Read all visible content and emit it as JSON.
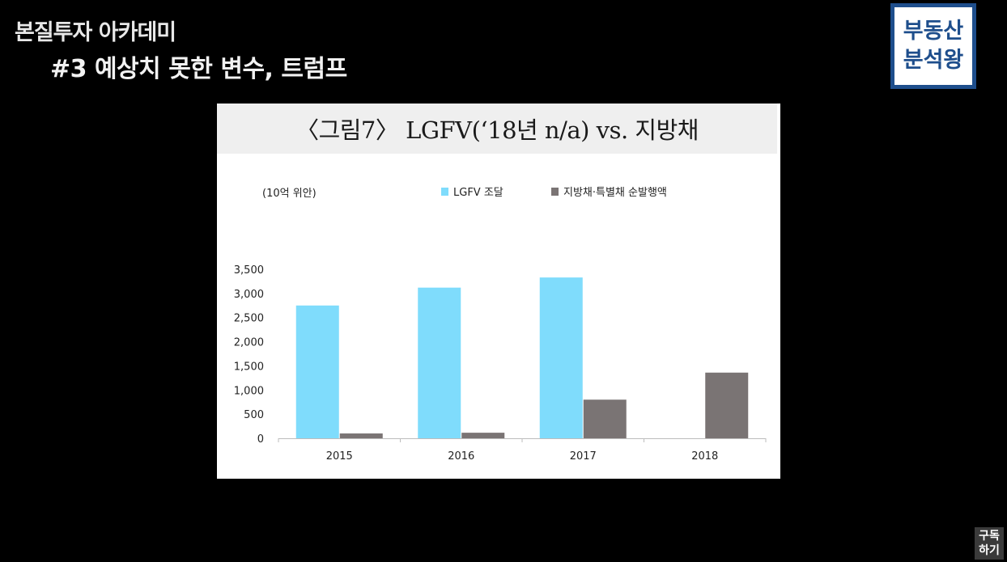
{
  "header": {
    "channel": "본질투자 아카데미",
    "episode": "#3 예상치 못한 변수, 트럼프"
  },
  "logo": {
    "line1": "부동산",
    "line2": "분석왕"
  },
  "subscribe": {
    "line1": "구독",
    "line2": "하기"
  },
  "colors": {
    "lgfv": "#7fdcfc",
    "local_bond": "#7a7474"
  },
  "chart_data": {
    "type": "bar",
    "title": "〈그림7〉 LGFV(‘18년 n/a) vs. 지방채",
    "unit_label": "(10억 위안)",
    "categories": [
      "2015",
      "2016",
      "2017",
      "2018"
    ],
    "series": [
      {
        "name": "LGFV 조달",
        "values": [
          2750,
          3120,
          3330,
          null
        ]
      },
      {
        "name": "지방채·특별채 순발행액",
        "values": [
          100,
          115,
          800,
          1360
        ]
      }
    ],
    "ylim": [
      0,
      3500
    ],
    "yticks": [
      0,
      500,
      1000,
      1500,
      2000,
      2500,
      3000,
      3500
    ],
    "ytick_labels": [
      "0",
      "500",
      "1,000",
      "1,500",
      "2,000",
      "2,500",
      "3,000",
      "3,500"
    ],
    "legend_position": "top",
    "grid": false
  }
}
